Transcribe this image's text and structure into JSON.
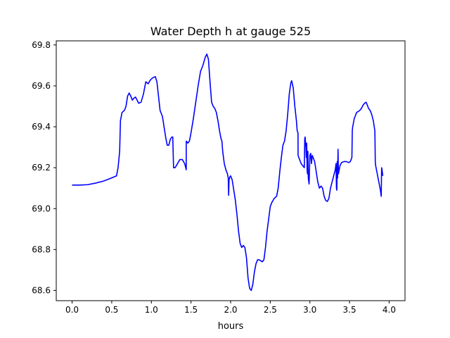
{
  "chart_data": {
    "type": "line",
    "title": "Water Depth h at gauge 525",
    "xlabel": "hours",
    "ylabel": "",
    "xlim": [
      -0.2,
      4.2
    ],
    "ylim": [
      68.55,
      69.82
    ],
    "xticks": [
      0.0,
      0.5,
      1.0,
      1.5,
      2.0,
      2.5,
      3.0,
      3.5,
      4.0
    ],
    "xtick_labels": [
      "0.0",
      "0.5",
      "1.0",
      "1.5",
      "2.0",
      "2.5",
      "3.0",
      "3.5",
      "4.0"
    ],
    "yticks": [
      68.6,
      68.8,
      69.0,
      69.2,
      69.4,
      69.6,
      69.8
    ],
    "ytick_labels": [
      "68.6",
      "68.8",
      "69.0",
      "69.2",
      "69.4",
      "69.6",
      "69.8"
    ],
    "grid": false,
    "legend": "none",
    "series": [
      {
        "color": "#0000ff",
        "points": [
          [
            0.0,
            69.115
          ],
          [
            0.1,
            69.115
          ],
          [
            0.2,
            69.117
          ],
          [
            0.3,
            69.125
          ],
          [
            0.4,
            69.135
          ],
          [
            0.5,
            69.15
          ],
          [
            0.56,
            69.16
          ],
          [
            0.58,
            69.2
          ],
          [
            0.6,
            69.28
          ],
          [
            0.61,
            69.43
          ],
          [
            0.63,
            69.47
          ],
          [
            0.66,
            69.48
          ],
          [
            0.68,
            69.5
          ],
          [
            0.7,
            69.55
          ],
          [
            0.72,
            69.565
          ],
          [
            0.74,
            69.55
          ],
          [
            0.76,
            69.53
          ],
          [
            0.78,
            69.54
          ],
          [
            0.8,
            69.545
          ],
          [
            0.82,
            69.53
          ],
          [
            0.84,
            69.515
          ],
          [
            0.87,
            69.52
          ],
          [
            0.9,
            69.56
          ],
          [
            0.93,
            69.62
          ],
          [
            0.96,
            69.61
          ],
          [
            0.99,
            69.63
          ],
          [
            1.02,
            69.64
          ],
          [
            1.05,
            69.645
          ],
          [
            1.07,
            69.62
          ],
          [
            1.09,
            69.55
          ],
          [
            1.11,
            69.48
          ],
          [
            1.14,
            69.45
          ],
          [
            1.16,
            69.4
          ],
          [
            1.18,
            69.35
          ],
          [
            1.2,
            69.31
          ],
          [
            1.22,
            69.31
          ],
          [
            1.24,
            69.34
          ],
          [
            1.26,
            69.35
          ],
          [
            1.27,
            69.35
          ],
          [
            1.28,
            69.2
          ],
          [
            1.3,
            69.2
          ],
          [
            1.33,
            69.22
          ],
          [
            1.36,
            69.24
          ],
          [
            1.39,
            69.24
          ],
          [
            1.42,
            69.22
          ],
          [
            1.44,
            69.19
          ],
          [
            1.44,
            69.33
          ],
          [
            1.46,
            69.32
          ],
          [
            1.48,
            69.33
          ],
          [
            1.5,
            69.37
          ],
          [
            1.53,
            69.44
          ],
          [
            1.56,
            69.52
          ],
          [
            1.59,
            69.6
          ],
          [
            1.62,
            69.67
          ],
          [
            1.65,
            69.7
          ],
          [
            1.68,
            69.74
          ],
          [
            1.7,
            69.755
          ],
          [
            1.72,
            69.73
          ],
          [
            1.74,
            69.62
          ],
          [
            1.76,
            69.52
          ],
          [
            1.78,
            69.5
          ],
          [
            1.8,
            69.49
          ],
          [
            1.82,
            69.47
          ],
          [
            1.84,
            69.43
          ],
          [
            1.86,
            69.38
          ],
          [
            1.88,
            69.34
          ],
          [
            1.89,
            69.33
          ],
          [
            1.9,
            69.28
          ],
          [
            1.92,
            69.22
          ],
          [
            1.94,
            69.19
          ],
          [
            1.96,
            69.17
          ],
          [
            1.97,
            69.15
          ],
          [
            1.975,
            69.065
          ],
          [
            1.98,
            69.14
          ],
          [
            1.99,
            69.155
          ],
          [
            2.0,
            69.16
          ],
          [
            2.02,
            69.14
          ],
          [
            2.04,
            69.09
          ],
          [
            2.06,
            69.04
          ],
          [
            2.08,
            68.97
          ],
          [
            2.1,
            68.89
          ],
          [
            2.12,
            68.83
          ],
          [
            2.14,
            68.81
          ],
          [
            2.16,
            68.82
          ],
          [
            2.18,
            68.81
          ],
          [
            2.2,
            68.76
          ],
          [
            2.22,
            68.66
          ],
          [
            2.24,
            68.61
          ],
          [
            2.26,
            68.6
          ],
          [
            2.28,
            68.63
          ],
          [
            2.3,
            68.69
          ],
          [
            2.32,
            68.73
          ],
          [
            2.34,
            68.75
          ],
          [
            2.36,
            68.75
          ],
          [
            2.38,
            68.745
          ],
          [
            2.4,
            68.74
          ],
          [
            2.42,
            68.75
          ],
          [
            2.44,
            68.81
          ],
          [
            2.46,
            68.89
          ],
          [
            2.48,
            68.95
          ],
          [
            2.5,
            69.01
          ],
          [
            2.52,
            69.03
          ],
          [
            2.55,
            69.05
          ],
          [
            2.58,
            69.06
          ],
          [
            2.6,
            69.1
          ],
          [
            2.62,
            69.18
          ],
          [
            2.64,
            69.25
          ],
          [
            2.66,
            69.31
          ],
          [
            2.68,
            69.33
          ],
          [
            2.7,
            69.38
          ],
          [
            2.72,
            69.46
          ],
          [
            2.74,
            69.56
          ],
          [
            2.76,
            69.615
          ],
          [
            2.77,
            69.625
          ],
          [
            2.79,
            69.59
          ],
          [
            2.81,
            69.5
          ],
          [
            2.83,
            69.43
          ],
          [
            2.84,
            69.38
          ],
          [
            2.85,
            69.37
          ],
          [
            2.851,
            69.26
          ],
          [
            2.87,
            69.24
          ],
          [
            2.89,
            69.22
          ],
          [
            2.91,
            69.21
          ],
          [
            2.93,
            69.2
          ],
          [
            2.935,
            69.34
          ],
          [
            2.94,
            69.35
          ],
          [
            2.95,
            69.3
          ],
          [
            2.955,
            69.25
          ],
          [
            2.96,
            69.32
          ],
          [
            2.965,
            69.19
          ],
          [
            2.97,
            69.17
          ],
          [
            2.975,
            69.28
          ],
          [
            2.98,
            69.15
          ],
          [
            2.99,
            69.12
          ],
          [
            3.0,
            69.26
          ],
          [
            3.01,
            69.27
          ],
          [
            3.02,
            69.22
          ],
          [
            3.03,
            69.26
          ],
          [
            3.04,
            69.25
          ],
          [
            3.06,
            69.23
          ],
          [
            3.08,
            69.18
          ],
          [
            3.1,
            69.13
          ],
          [
            3.12,
            69.1
          ],
          [
            3.14,
            69.11
          ],
          [
            3.16,
            69.1
          ],
          [
            3.18,
            69.06
          ],
          [
            3.2,
            69.04
          ],
          [
            3.22,
            69.035
          ],
          [
            3.24,
            69.05
          ],
          [
            3.26,
            69.1
          ],
          [
            3.28,
            69.13
          ],
          [
            3.3,
            69.16
          ],
          [
            3.32,
            69.19
          ],
          [
            3.33,
            69.22
          ],
          [
            3.335,
            69.1
          ],
          [
            3.34,
            69.09
          ],
          [
            3.345,
            69.23
          ],
          [
            3.35,
            69.15
          ],
          [
            3.355,
            69.29
          ],
          [
            3.36,
            69.17
          ],
          [
            3.37,
            69.19
          ],
          [
            3.38,
            69.21
          ],
          [
            3.4,
            69.225
          ],
          [
            3.43,
            69.23
          ],
          [
            3.46,
            69.23
          ],
          [
            3.49,
            69.225
          ],
          [
            3.51,
            69.23
          ],
          [
            3.53,
            69.25
          ],
          [
            3.535,
            69.38
          ],
          [
            3.54,
            69.4
          ],
          [
            3.55,
            69.42
          ],
          [
            3.56,
            69.44
          ],
          [
            3.57,
            69.45
          ],
          [
            3.58,
            69.46
          ],
          [
            3.59,
            69.47
          ],
          [
            3.61,
            69.475
          ],
          [
            3.63,
            69.48
          ],
          [
            3.65,
            69.49
          ],
          [
            3.67,
            69.505
          ],
          [
            3.69,
            69.515
          ],
          [
            3.71,
            69.52
          ],
          [
            3.72,
            69.51
          ],
          [
            3.74,
            69.49
          ],
          [
            3.76,
            69.48
          ],
          [
            3.78,
            69.46
          ],
          [
            3.8,
            69.43
          ],
          [
            3.82,
            69.38
          ],
          [
            3.825,
            69.23
          ],
          [
            3.83,
            69.21
          ],
          [
            3.85,
            69.17
          ],
          [
            3.87,
            69.13
          ],
          [
            3.89,
            69.09
          ],
          [
            3.9,
            69.06
          ],
          [
            3.905,
            69.2
          ],
          [
            3.91,
            69.19
          ],
          [
            3.92,
            69.16
          ]
        ]
      }
    ]
  }
}
